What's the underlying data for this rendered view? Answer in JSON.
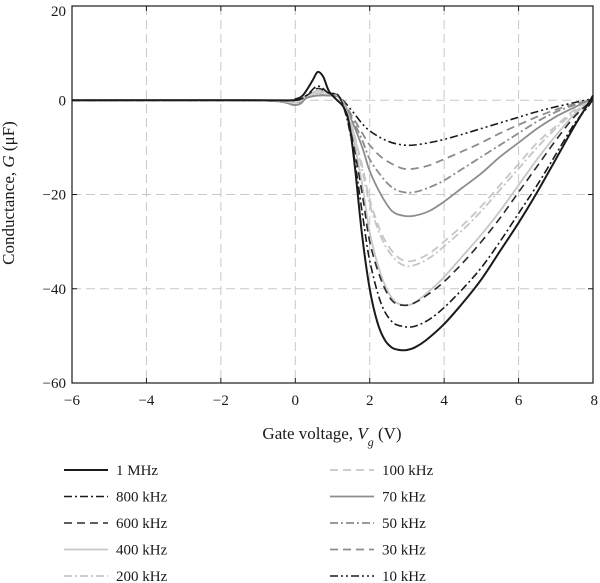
{
  "chart_data": {
    "type": "line",
    "title": "",
    "xlabel": {
      "prefix": "Gate voltage, ",
      "var": "V",
      "sub": "g",
      "unit": " (V)"
    },
    "ylabel": {
      "prefix": "Conductance, ",
      "var": "G",
      "unit": " (μF)"
    },
    "xlim": [
      -6,
      8
    ],
    "ylim": [
      -60,
      20
    ],
    "xticks": [
      -6,
      -4,
      -2,
      0,
      2,
      4,
      6,
      8
    ],
    "xtick_labels": [
      "−6",
      "−4",
      "−2",
      "0",
      "2",
      "4",
      "6",
      "8"
    ],
    "yticks": [
      -60,
      -40,
      -20,
      0,
      20
    ],
    "ytick_labels": [
      "−60",
      "−40",
      "−20",
      "0",
      "20"
    ],
    "grid": true,
    "legend_position": "below",
    "series": [
      {
        "name": "1 MHz",
        "color": "#1a1a1a",
        "dash": "",
        "width": 2,
        "x": [
          -6,
          -1,
          -0.1,
          0,
          0.2,
          0.45,
          0.6,
          0.75,
          0.9,
          1.1,
          1.3,
          1.45,
          1.6,
          1.8,
          2.0,
          2.2,
          2.4,
          2.6,
          2.8,
          3.0,
          3.2,
          3.5,
          4.0,
          4.5,
          5.0,
          5.5,
          6.0,
          6.5,
          7.0,
          7.5,
          7.85,
          8.0
        ],
        "y": [
          0,
          0,
          0,
          0.2,
          1.0,
          4.0,
          6.0,
          5.0,
          2.0,
          0.2,
          -1.5,
          -5.0,
          -14.0,
          -29.0,
          -40.0,
          -47.0,
          -50.8,
          -52.5,
          -53.0,
          -53.0,
          -52.5,
          -51.0,
          -47.5,
          -43.0,
          -38.0,
          -32.0,
          -26.0,
          -19.5,
          -12.5,
          -5.5,
          -1.0,
          1.0
        ]
      },
      {
        "name": "800 kHz",
        "color": "#1a1a1a",
        "dash": "8,3,2,3",
        "width": 1.6,
        "x": [
          -6,
          -1,
          0,
          0.3,
          0.6,
          0.9,
          1.2,
          1.5,
          1.8,
          2.0,
          2.3,
          2.6,
          2.9,
          3.2,
          3.6,
          4.0,
          4.5,
          5.0,
          5.5,
          6.0,
          6.5,
          7.0,
          7.5,
          7.9,
          8.0
        ],
        "y": [
          0,
          0,
          0,
          1.0,
          3.0,
          1.5,
          0.5,
          -8.0,
          -24.0,
          -34.0,
          -43.0,
          -47.0,
          -48.0,
          -48.0,
          -46.5,
          -44.0,
          -40.0,
          -35.5,
          -30.0,
          -24.0,
          -18.0,
          -11.5,
          -5.0,
          -1.0,
          0.5
        ]
      },
      {
        "name": "600 kHz",
        "color": "#2a2a2a",
        "dash": "8,5",
        "width": 1.6,
        "x": [
          -6,
          -1,
          0,
          0.3,
          0.6,
          0.9,
          1.2,
          1.5,
          1.8,
          2.0,
          2.3,
          2.6,
          2.9,
          3.2,
          3.6,
          4.0,
          4.5,
          5.0,
          5.5,
          6.0,
          6.5,
          7.0,
          7.5,
          7.9,
          8.0
        ],
        "y": [
          0,
          0,
          0,
          1.0,
          2.5,
          1.5,
          0.5,
          -7.0,
          -20.0,
          -30.0,
          -38.0,
          -42.5,
          -43.5,
          -43.0,
          -41.0,
          -38.5,
          -34.5,
          -30.0,
          -25.0,
          -19.5,
          -14.0,
          -8.5,
          -3.5,
          -0.5,
          0.5
        ]
      },
      {
        "name": "400 kHz",
        "color": "#c6c6c6",
        "dash": "",
        "width": 1.8,
        "x": [
          -6,
          -1,
          0,
          0.3,
          0.6,
          0.9,
          1.2,
          1.5,
          1.8,
          2.0,
          2.3,
          2.6,
          2.9,
          3.2,
          3.6,
          4.0,
          4.5,
          5.0,
          5.5,
          6.0,
          6.5,
          7.0,
          7.5,
          7.9,
          8.0
        ],
        "y": [
          0,
          0,
          -0.5,
          1.0,
          2.0,
          1.5,
          0.5,
          -6.0,
          -18.0,
          -28.0,
          -37.0,
          -42.0,
          -43.5,
          -43.0,
          -40.5,
          -37.5,
          -33.0,
          -28.5,
          -23.5,
          -18.0,
          -12.5,
          -7.5,
          -3.0,
          -0.5,
          0.5
        ]
      },
      {
        "name": "200 kHz",
        "color": "#c6c6c6",
        "dash": "8,3,2,3",
        "width": 1.8,
        "x": [
          -6,
          -1,
          0,
          0.3,
          0.6,
          0.9,
          1.2,
          1.5,
          1.8,
          2.0,
          2.3,
          2.6,
          2.9,
          3.2,
          3.6,
          4.0,
          4.5,
          5.0,
          5.5,
          6.0,
          6.5,
          7.0,
          7.5,
          7.9,
          8.0
        ],
        "y": [
          0,
          0,
          -0.5,
          1.0,
          1.5,
          1.5,
          0.5,
          -5.0,
          -15.0,
          -22.0,
          -29.0,
          -33.0,
          -35.0,
          -35.0,
          -33.5,
          -31.0,
          -27.5,
          -23.5,
          -19.0,
          -14.5,
          -10.0,
          -6.0,
          -2.5,
          -0.3,
          0.5
        ]
      },
      {
        "name": "100 kHz",
        "color": "#c6c6c6",
        "dash": "8,5",
        "width": 1.8,
        "x": [
          -6,
          -1,
          0,
          0.3,
          0.6,
          0.9,
          1.2,
          1.5,
          1.8,
          2.0,
          2.3,
          2.6,
          2.9,
          3.2,
          3.6,
          4.0,
          4.5,
          5.0,
          5.5,
          6.0,
          6.5,
          7.0,
          7.5,
          7.9,
          8.0
        ],
        "y": [
          0,
          0,
          -0.5,
          1.0,
          1.5,
          1.5,
          0.5,
          -5.0,
          -14.0,
          -21.0,
          -28.0,
          -32.0,
          -34.0,
          -34.0,
          -32.5,
          -30.0,
          -26.5,
          -22.5,
          -18.0,
          -13.5,
          -9.0,
          -5.5,
          -2.0,
          -0.3,
          0.5
        ]
      },
      {
        "name": "70 kHz",
        "color": "#8c8c8c",
        "dash": "",
        "width": 1.8,
        "x": [
          -6,
          -1,
          0,
          0.3,
          0.6,
          0.9,
          1.2,
          1.5,
          1.8,
          2.0,
          2.3,
          2.6,
          2.9,
          3.2,
          3.6,
          4.0,
          4.5,
          5.0,
          5.5,
          6.0,
          6.5,
          7.0,
          7.5,
          7.9,
          8.0
        ],
        "y": [
          0,
          0,
          -1.0,
          0.5,
          1.0,
          1.0,
          0.5,
          -4.0,
          -10.0,
          -15.0,
          -20.0,
          -23.5,
          -24.5,
          -24.5,
          -23.5,
          -21.5,
          -18.5,
          -15.5,
          -12.0,
          -9.0,
          -6.0,
          -3.5,
          -1.5,
          0.0,
          0.5
        ]
      },
      {
        "name": "50 kHz",
        "color": "#8c8c8c",
        "dash": "8,3,2,3",
        "width": 1.8,
        "x": [
          -6,
          -1,
          0,
          0.3,
          0.6,
          0.9,
          1.2,
          1.5,
          1.8,
          2.0,
          2.3,
          2.6,
          2.9,
          3.2,
          3.6,
          4.0,
          4.5,
          5.0,
          5.5,
          6.0,
          6.5,
          7.0,
          7.5,
          7.9,
          8.0
        ],
        "y": [
          0,
          0,
          -1.0,
          0.5,
          1.0,
          1.0,
          0.5,
          -3.5,
          -8.5,
          -12.5,
          -16.0,
          -18.5,
          -19.5,
          -19.5,
          -18.5,
          -17.0,
          -14.5,
          -12.0,
          -9.5,
          -7.0,
          -4.5,
          -2.5,
          -1.0,
          0.0,
          0.5
        ]
      },
      {
        "name": "30 kHz",
        "color": "#8c8c8c",
        "dash": "8,5",
        "width": 1.8,
        "x": [
          -6,
          -1,
          0,
          0.3,
          0.6,
          0.9,
          1.2,
          1.5,
          1.8,
          2.0,
          2.3,
          2.6,
          2.9,
          3.2,
          3.6,
          4.0,
          4.5,
          5.0,
          5.5,
          6.0,
          6.5,
          7.0,
          7.5,
          7.9,
          8.0
        ],
        "y": [
          0,
          0,
          -1.0,
          0.5,
          1.0,
          1.0,
          0.5,
          -3.0,
          -7.0,
          -9.5,
          -12.0,
          -13.5,
          -14.5,
          -14.5,
          -13.8,
          -12.5,
          -10.8,
          -9.0,
          -7.0,
          -5.2,
          -3.5,
          -2.0,
          -0.8,
          0.0,
          0.5
        ]
      },
      {
        "name": "10 kHz",
        "color": "#1a1a1a",
        "dash": "8,3,2,3,2,3",
        "width": 1.6,
        "x": [
          -6,
          -1,
          0,
          0.3,
          0.6,
          0.9,
          1.2,
          1.5,
          1.8,
          2.0,
          2.3,
          2.6,
          2.9,
          3.2,
          3.6,
          4.0,
          4.5,
          5.0,
          5.5,
          6.0,
          6.5,
          7.0,
          7.5,
          7.9,
          8.0
        ],
        "y": [
          0,
          0,
          -0.5,
          0.5,
          1.0,
          1.0,
          0.5,
          -2.0,
          -5.0,
          -6.5,
          -8.0,
          -9.0,
          -9.5,
          -9.5,
          -9.0,
          -8.3,
          -7.2,
          -6.0,
          -4.8,
          -3.6,
          -2.4,
          -1.4,
          -0.5,
          0.2,
          0.5
        ]
      }
    ]
  }
}
